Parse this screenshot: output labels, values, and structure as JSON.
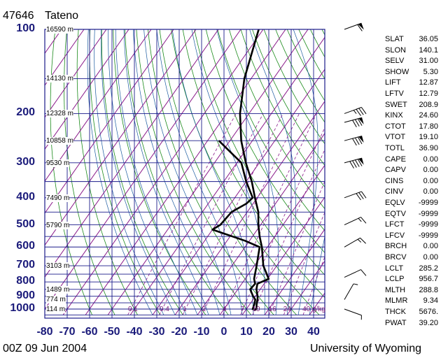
{
  "header": {
    "station_id": "47646",
    "station_name": "Tateno",
    "time": "00Z 09 Jun 2004",
    "source": "University of Wyoming"
  },
  "chart_data": {
    "type": "line",
    "title": "47646 Tateno",
    "xlabel": "",
    "ylabel": "",
    "x_ticks": [
      "-80",
      "-70",
      "-60",
      "-50",
      "-40",
      "-30",
      "-20",
      "-10",
      "0",
      "10",
      "20",
      "30",
      "40"
    ],
    "xlim": [
      -80,
      45
    ],
    "pressure_ticks": [
      "100",
      "200",
      "300",
      "400",
      "500",
      "600",
      "700",
      "800",
      "900",
      "1000"
    ],
    "ylim_pressure": [
      1050,
      100
    ],
    "y_scale": "log",
    "height_labels": [
      {
        "p": 100,
        "label": "16590 m"
      },
      {
        "p": 150,
        "label": "14130 m"
      },
      {
        "p": 200,
        "label": "12328 m"
      },
      {
        "p": 250,
        "label": "10858 m"
      },
      {
        "p": 300,
        "label": "9530 m"
      },
      {
        "p": 400,
        "label": "7490 m"
      },
      {
        "p": 500,
        "label": "5790 m"
      },
      {
        "p": 700,
        "label": "3103 m"
      },
      {
        "p": 850,
        "label": "1489 m"
      },
      {
        "p": 925,
        "label": "774 m"
      },
      {
        "p": 1000,
        "label": "114 m"
      }
    ],
    "mixing_ratio_labels": [
      "0.1",
      "0.4",
      "1",
      "2",
      "4",
      "7",
      "10",
      "16",
      "24",
      "40 g/kg"
    ],
    "series": [
      {
        "name": "",
        "color": "#000000",
        "points": [
          {
            "p": 1007,
            "t": 13.6
          },
          {
            "p": 1000,
            "t": 14.5
          },
          {
            "p": 960,
            "t": 13.0
          },
          {
            "p": 925,
            "t": 12.0
          },
          {
            "p": 900,
            "t": 11.0
          },
          {
            "p": 850,
            "t": 8.3
          },
          {
            "p": 812,
            "t": 7.0
          },
          {
            "p": 780,
            "t": 10.5
          },
          {
            "p": 700,
            "t": 4.0
          },
          {
            "p": 600,
            "t": -2.5
          },
          {
            "p": 550,
            "t": -6.8
          },
          {
            "p": 500,
            "t": -11.0
          },
          {
            "p": 450,
            "t": -15.0
          },
          {
            "p": 400,
            "t": -21.0
          },
          {
            "p": 350,
            "t": -27.5
          },
          {
            "p": 300,
            "t": -36.0
          },
          {
            "p": 250,
            "t": -45.0
          },
          {
            "p": 200,
            "t": -54.0
          },
          {
            "p": 150,
            "t": -63.0
          },
          {
            "p": 100,
            "t": -72.0
          }
        ]
      },
      {
        "name": "",
        "color": "#000000",
        "points": [
          {
            "p": 1007,
            "t": 13.0
          },
          {
            "p": 1000,
            "t": 12.8
          },
          {
            "p": 960,
            "t": 12.0
          },
          {
            "p": 925,
            "t": 11.0
          },
          {
            "p": 900,
            "t": 9.0
          },
          {
            "p": 850,
            "t": 5.5
          },
          {
            "p": 812,
            "t": 6.0
          },
          {
            "p": 780,
            "t": 4.0
          },
          {
            "p": 700,
            "t": 1.0
          },
          {
            "p": 600,
            "t": -3.5
          },
          {
            "p": 570,
            "t": -12.0
          },
          {
            "p": 520,
            "t": -30.0
          },
          {
            "p": 500,
            "t": -28.0
          },
          {
            "p": 450,
            "t": -27.0
          },
          {
            "p": 420,
            "t": -23.0
          },
          {
            "p": 400,
            "t": -22.0
          },
          {
            "p": 350,
            "t": -30.0
          },
          {
            "p": 300,
            "t": -38.0
          },
          {
            "p": 250,
            "t": -55.0
          }
        ]
      }
    ]
  },
  "wind_barbs": [
    {
      "p": 100,
      "speed_kt": 60,
      "dir_deg": 250
    },
    {
      "p": 200,
      "speed_kt": 35,
      "dir_deg": 250
    },
    {
      "p": 215,
      "speed_kt": 80,
      "dir_deg": 255
    },
    {
      "p": 250,
      "speed_kt": 80,
      "dir_deg": 255
    },
    {
      "p": 300,
      "speed_kt": 90,
      "dir_deg": 255
    },
    {
      "p": 400,
      "speed_kt": 30,
      "dir_deg": 250
    },
    {
      "p": 500,
      "speed_kt": 15,
      "dir_deg": 245
    },
    {
      "p": 600,
      "speed_kt": 15,
      "dir_deg": 240
    },
    {
      "p": 770,
      "speed_kt": 10,
      "dir_deg": 245
    },
    {
      "p": 925,
      "speed_kt": 5,
      "dir_deg": 210
    },
    {
      "p": 1000,
      "speed_kt": 5,
      "dir_deg": 290
    }
  ],
  "indices": [
    {
      "name": "SLAT",
      "value": "36.05"
    },
    {
      "name": "SLON",
      "value": "140.1"
    },
    {
      "name": "SELV",
      "value": "31.00"
    },
    {
      "name": "SHOW",
      "value": "5.30"
    },
    {
      "name": "LIFT",
      "value": "12.87"
    },
    {
      "name": "LFTV",
      "value": "12.79"
    },
    {
      "name": "SWET",
      "value": "208.9"
    },
    {
      "name": "KINX",
      "value": "24.60"
    },
    {
      "name": "CTOT",
      "value": "17.80"
    },
    {
      "name": "VTOT",
      "value": "19.10"
    },
    {
      "name": "TOTL",
      "value": "36.90"
    },
    {
      "name": "CAPE",
      "value": "0.00"
    },
    {
      "name": "CAPV",
      "value": "0.00"
    },
    {
      "name": "CINS",
      "value": "0.00"
    },
    {
      "name": "CINV",
      "value": "0.00"
    },
    {
      "name": "EQLV",
      "value": "-9999"
    },
    {
      "name": "EQTV",
      "value": "-9999"
    },
    {
      "name": "LFCT",
      "value": "-9999"
    },
    {
      "name": "LFCV",
      "value": "-9999"
    },
    {
      "name": "BRCH",
      "value": "0.00"
    },
    {
      "name": "BRCV",
      "value": "0.00"
    },
    {
      "name": "LCLT",
      "value": "285.2"
    },
    {
      "name": "LCLP",
      "value": "956.7"
    },
    {
      "name": "MLTH",
      "value": "288.8"
    },
    {
      "name": "MLMR",
      "value": "9.34"
    },
    {
      "name": "THCK",
      "value": "5676."
    },
    {
      "name": "PWAT",
      "value": "39.20"
    }
  ],
  "colors": {
    "axis_blue": "#1a1a8a",
    "dry_adiabat": "#1a8a1a",
    "moist_adiabat": "#1a5aa0",
    "mixing_ratio": "#8a1a8a",
    "profile": "#000000"
  }
}
